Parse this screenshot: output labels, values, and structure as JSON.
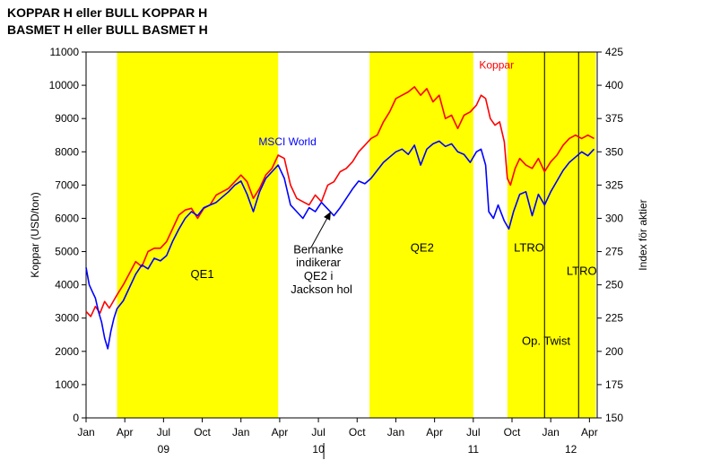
{
  "title_line1": "KOPPAR H eller BULL KOPPAR H",
  "title_line2": "BASMET H eller BULL BASMET H",
  "chart_data": {
    "type": "line",
    "ylabel": "Koppar (USD/ton)",
    "y2label": "Index för aktier",
    "ylim": [
      0,
      11000
    ],
    "y2lim": [
      150,
      425
    ],
    "yticks": [
      0,
      1000,
      2000,
      3000,
      4000,
      5000,
      6000,
      7000,
      8000,
      9000,
      10000,
      11000
    ],
    "y2ticks": [
      150,
      175,
      200,
      225,
      250,
      275,
      300,
      325,
      350,
      375,
      400,
      425
    ],
    "xlim": [
      2009.0,
      2012.3
    ],
    "xticks": [
      {
        "x": 2009.0,
        "label": "Jan"
      },
      {
        "x": 2009.25,
        "label": "Apr"
      },
      {
        "x": 2009.5,
        "label": "Jul"
      },
      {
        "x": 2009.75,
        "label": "Oct"
      },
      {
        "x": 2010.0,
        "label": "Jan"
      },
      {
        "x": 2010.25,
        "label": "Apr"
      },
      {
        "x": 2010.5,
        "label": "Jul"
      },
      {
        "x": 2010.75,
        "label": "Oct"
      },
      {
        "x": 2011.0,
        "label": "Jan"
      },
      {
        "x": 2011.25,
        "label": "Apr"
      },
      {
        "x": 2011.5,
        "label": "Jul"
      },
      {
        "x": 2011.75,
        "label": "Oct"
      },
      {
        "x": 2012.0,
        "label": "Jan"
      },
      {
        "x": 2012.25,
        "label": "Apr"
      }
    ],
    "year_labels": [
      {
        "x": 2009.5,
        "label": "09"
      },
      {
        "x": 2010.5,
        "label": "10"
      },
      {
        "x": 2011.5,
        "label": "11"
      },
      {
        "x": 2012.13,
        "label": "12"
      }
    ],
    "bands": [
      {
        "x0": 2009.2,
        "x1": 2010.24,
        "label": "QE1",
        "label_x": 2009.75,
        "label_y": 4200
      },
      {
        "x0": 2010.83,
        "x1": 2011.5,
        "label": "QE2",
        "label_x": 2011.17,
        "label_y": 5000
      },
      {
        "x0": 2011.72,
        "x1": 2012.29,
        "label": "",
        "label_x": 2011.72,
        "label_y": 0
      }
    ],
    "vlines": [
      2011.96,
      2012.18
    ],
    "annotations": [
      {
        "text": "LTRO",
        "x": 2011.86,
        "y": 5000
      },
      {
        "text": "LTRO",
        "x": 2012.2,
        "y": 4300
      },
      {
        "text": "Op. Twist",
        "x": 2011.97,
        "y": 2200
      },
      {
        "text": "Bernanke",
        "x": 2010.5,
        "y": 4950
      },
      {
        "text": "indikerar",
        "x": 2010.5,
        "y": 4550
      },
      {
        "text": "QE2 i",
        "x": 2010.5,
        "y": 4150
      },
      {
        "text": "Jackson hol",
        "x": 2010.52,
        "y": 3750
      }
    ],
    "arrow": {
      "from": [
        2010.45,
        5100
      ],
      "to": [
        2010.58,
        6200
      ]
    },
    "series": [
      {
        "name": "Koppar",
        "axis": "left",
        "color": "#ff0000",
        "label_pos": [
          2011.65,
          10500
        ],
        "points": [
          [
            2009.0,
            3200
          ],
          [
            2009.03,
            3050
          ],
          [
            2009.06,
            3350
          ],
          [
            2009.09,
            3150
          ],
          [
            2009.12,
            3500
          ],
          [
            2009.15,
            3300
          ],
          [
            2009.2,
            3700
          ],
          [
            2009.24,
            4000
          ],
          [
            2009.28,
            4350
          ],
          [
            2009.32,
            4700
          ],
          [
            2009.36,
            4550
          ],
          [
            2009.4,
            5000
          ],
          [
            2009.44,
            5100
          ],
          [
            2009.48,
            5100
          ],
          [
            2009.52,
            5300
          ],
          [
            2009.56,
            5700
          ],
          [
            2009.6,
            6100
          ],
          [
            2009.64,
            6250
          ],
          [
            2009.68,
            6300
          ],
          [
            2009.72,
            6000
          ],
          [
            2009.76,
            6300
          ],
          [
            2009.8,
            6400
          ],
          [
            2009.84,
            6700
          ],
          [
            2009.88,
            6800
          ],
          [
            2009.92,
            6900
          ],
          [
            2009.96,
            7100
          ],
          [
            2010.0,
            7300
          ],
          [
            2010.04,
            7100
          ],
          [
            2010.08,
            6600
          ],
          [
            2010.12,
            6900
          ],
          [
            2010.16,
            7300
          ],
          [
            2010.2,
            7500
          ],
          [
            2010.24,
            7900
          ],
          [
            2010.28,
            7800
          ],
          [
            2010.32,
            7000
          ],
          [
            2010.36,
            6600
          ],
          [
            2010.4,
            6500
          ],
          [
            2010.44,
            6400
          ],
          [
            2010.48,
            6700
          ],
          [
            2010.52,
            6500
          ],
          [
            2010.56,
            7000
          ],
          [
            2010.6,
            7100
          ],
          [
            2010.64,
            7400
          ],
          [
            2010.68,
            7500
          ],
          [
            2010.72,
            7700
          ],
          [
            2010.76,
            8000
          ],
          [
            2010.8,
            8200
          ],
          [
            2010.84,
            8400
          ],
          [
            2010.88,
            8500
          ],
          [
            2010.92,
            8900
          ],
          [
            2010.96,
            9200
          ],
          [
            2011.0,
            9600
          ],
          [
            2011.04,
            9700
          ],
          [
            2011.08,
            9800
          ],
          [
            2011.12,
            9950
          ],
          [
            2011.16,
            9700
          ],
          [
            2011.2,
            9900
          ],
          [
            2011.24,
            9500
          ],
          [
            2011.28,
            9700
          ],
          [
            2011.32,
            9000
          ],
          [
            2011.36,
            9100
          ],
          [
            2011.4,
            8700
          ],
          [
            2011.44,
            9100
          ],
          [
            2011.48,
            9200
          ],
          [
            2011.52,
            9400
          ],
          [
            2011.55,
            9700
          ],
          [
            2011.58,
            9600
          ],
          [
            2011.61,
            9000
          ],
          [
            2011.64,
            8800
          ],
          [
            2011.67,
            8900
          ],
          [
            2011.7,
            8300
          ],
          [
            2011.72,
            7200
          ],
          [
            2011.74,
            7000
          ],
          [
            2011.77,
            7500
          ],
          [
            2011.8,
            7800
          ],
          [
            2011.84,
            7600
          ],
          [
            2011.88,
            7500
          ],
          [
            2011.92,
            7800
          ],
          [
            2011.96,
            7400
          ],
          [
            2012.0,
            7700
          ],
          [
            2012.04,
            7900
          ],
          [
            2012.08,
            8200
          ],
          [
            2012.12,
            8400
          ],
          [
            2012.16,
            8500
          ],
          [
            2012.2,
            8400
          ],
          [
            2012.24,
            8500
          ],
          [
            2012.28,
            8400
          ]
        ]
      },
      {
        "name": "MSCI World",
        "axis": "right",
        "color": "#0000ff",
        "label_pos": [
          2010.3,
          355
        ],
        "points": [
          [
            2009.0,
            263
          ],
          [
            2009.02,
            250
          ],
          [
            2009.04,
            245
          ],
          [
            2009.06,
            240
          ],
          [
            2009.08,
            230
          ],
          [
            2009.1,
            222
          ],
          [
            2009.12,
            210
          ],
          [
            2009.14,
            202
          ],
          [
            2009.16,
            215
          ],
          [
            2009.18,
            225
          ],
          [
            2009.2,
            232
          ],
          [
            2009.24,
            238
          ],
          [
            2009.28,
            248
          ],
          [
            2009.32,
            258
          ],
          [
            2009.36,
            265
          ],
          [
            2009.4,
            262
          ],
          [
            2009.44,
            270
          ],
          [
            2009.48,
            268
          ],
          [
            2009.52,
            272
          ],
          [
            2009.56,
            283
          ],
          [
            2009.6,
            292
          ],
          [
            2009.64,
            300
          ],
          [
            2009.68,
            305
          ],
          [
            2009.72,
            302
          ],
          [
            2009.76,
            308
          ],
          [
            2009.8,
            310
          ],
          [
            2009.84,
            312
          ],
          [
            2009.88,
            316
          ],
          [
            2009.92,
            320
          ],
          [
            2009.96,
            325
          ],
          [
            2010.0,
            328
          ],
          [
            2010.04,
            318
          ],
          [
            2010.08,
            305
          ],
          [
            2010.12,
            320
          ],
          [
            2010.16,
            330
          ],
          [
            2010.2,
            335
          ],
          [
            2010.24,
            340
          ],
          [
            2010.28,
            330
          ],
          [
            2010.32,
            310
          ],
          [
            2010.36,
            305
          ],
          [
            2010.4,
            300
          ],
          [
            2010.44,
            308
          ],
          [
            2010.48,
            305
          ],
          [
            2010.52,
            312
          ],
          [
            2010.56,
            307
          ],
          [
            2010.6,
            302
          ],
          [
            2010.64,
            308
          ],
          [
            2010.68,
            315
          ],
          [
            2010.72,
            322
          ],
          [
            2010.76,
            328
          ],
          [
            2010.8,
            326
          ],
          [
            2010.84,
            330
          ],
          [
            2010.88,
            336
          ],
          [
            2010.92,
            342
          ],
          [
            2010.96,
            346
          ],
          [
            2011.0,
            350
          ],
          [
            2011.04,
            352
          ],
          [
            2011.08,
            348
          ],
          [
            2011.12,
            355
          ],
          [
            2011.16,
            340
          ],
          [
            2011.2,
            352
          ],
          [
            2011.24,
            356
          ],
          [
            2011.28,
            358
          ],
          [
            2011.32,
            354
          ],
          [
            2011.36,
            356
          ],
          [
            2011.4,
            350
          ],
          [
            2011.44,
            348
          ],
          [
            2011.48,
            342
          ],
          [
            2011.52,
            350
          ],
          [
            2011.55,
            352
          ],
          [
            2011.58,
            340
          ],
          [
            2011.6,
            305
          ],
          [
            2011.63,
            300
          ],
          [
            2011.66,
            310
          ],
          [
            2011.7,
            298
          ],
          [
            2011.73,
            292
          ],
          [
            2011.76,
            305
          ],
          [
            2011.8,
            318
          ],
          [
            2011.84,
            320
          ],
          [
            2011.88,
            302
          ],
          [
            2011.92,
            318
          ],
          [
            2011.96,
            310
          ],
          [
            2012.0,
            320
          ],
          [
            2012.04,
            328
          ],
          [
            2012.08,
            336
          ],
          [
            2012.12,
            342
          ],
          [
            2012.16,
            346
          ],
          [
            2012.2,
            350
          ],
          [
            2012.24,
            347
          ],
          [
            2012.28,
            352
          ]
        ]
      }
    ]
  }
}
